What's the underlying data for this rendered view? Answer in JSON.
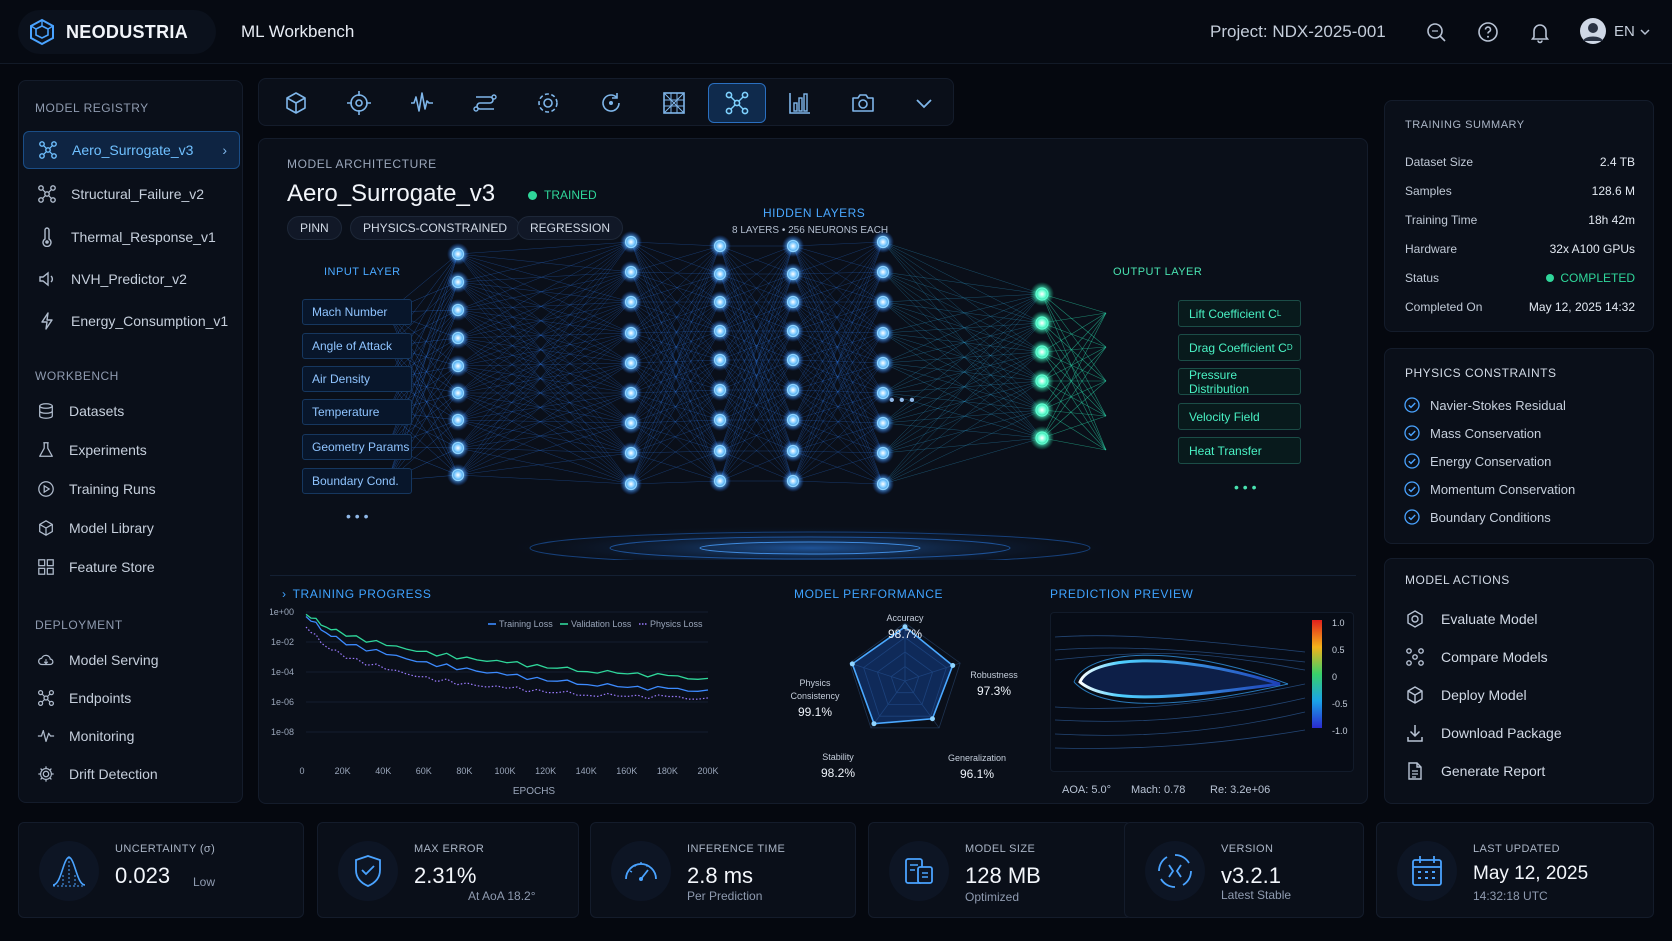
{
  "header": {
    "brand": "NEODUSTRIA",
    "app_title": "ML Workbench",
    "project": "Project: NDX-2025-001",
    "language": "EN"
  },
  "sidebar": {
    "registry_title": "MODEL REGISTRY",
    "models": [
      {
        "label": "Aero_Surrogate_v3",
        "icon": "network-icon",
        "active": true
      },
      {
        "label": "Structural_Failure_v2",
        "icon": "network-icon"
      },
      {
        "label": "Thermal_Response_v1",
        "icon": "thermometer-icon"
      },
      {
        "label": "NVH_Predictor_v2",
        "icon": "speaker-icon"
      },
      {
        "label": "Energy_Consumption_v1",
        "icon": "lightning-icon"
      }
    ],
    "workbench_title": "WORKBENCH",
    "workbench": [
      {
        "label": "Datasets",
        "icon": "database-icon"
      },
      {
        "label": "Experiments",
        "icon": "flask-icon"
      },
      {
        "label": "Training Runs",
        "icon": "play-icon"
      },
      {
        "label": "Model Library",
        "icon": "cube-icon"
      },
      {
        "label": "Feature Store",
        "icon": "grid-icon"
      }
    ],
    "deployment_title": "DEPLOYMENT",
    "deployment": [
      {
        "label": "Model Serving",
        "icon": "cloud-icon"
      },
      {
        "label": "Endpoints",
        "icon": "nodes-icon"
      },
      {
        "label": "Monitoring",
        "icon": "pulse-icon"
      },
      {
        "label": "Drift Detection",
        "icon": "gear-icon"
      }
    ]
  },
  "toolbar": {
    "tools": [
      "cube-icon",
      "target-icon",
      "waveform-icon",
      "pipeline-icon",
      "settings-icon",
      "refresh-icon",
      "mesh-icon",
      "network-icon",
      "bar-chart-icon",
      "camera-icon",
      "chevron-down-icon"
    ],
    "active_index": 7
  },
  "architecture": {
    "section_title": "MODEL ARCHITECTURE",
    "model_name": "Aero_Surrogate_v3",
    "status": "TRAINED",
    "tags": [
      "PINN",
      "PHYSICS-CONSTRAINED",
      "REGRESSION"
    ],
    "hidden_title": "HIDDEN LAYERS",
    "hidden_subtitle": "8 LAYERS • 256 NEURONS EACH",
    "input_title": "INPUT LAYER",
    "inputs": [
      "Mach Number",
      "Angle of Attack",
      "Air Density",
      "Temperature",
      "Geometry Params",
      "Boundary Cond."
    ],
    "output_title": "OUTPUT LAYER",
    "outputs": [
      {
        "label": "Lift Coefficient C",
        "sub": "L"
      },
      {
        "label": "Drag Coefficient C",
        "sub": "D"
      },
      {
        "label": "Pressure Distribution",
        "sub": ""
      },
      {
        "label": "Velocity Field",
        "sub": ""
      },
      {
        "label": "Heat Transfer",
        "sub": ""
      }
    ],
    "ellipsis": "• • •"
  },
  "training": {
    "title": "TRAINING PROGRESS",
    "legend": [
      "Training Loss",
      "Validation Loss",
      "Physics Loss"
    ],
    "xlabel": "EPOCHS"
  },
  "chart_data": {
    "type": "line",
    "title": "TRAINING PROGRESS",
    "xlabel": "EPOCHS",
    "ylabel": "",
    "y_scale": "log",
    "x_ticks": [
      "0",
      "20K",
      "40K",
      "60K",
      "80K",
      "100K",
      "120K",
      "140K",
      "160K",
      "180K",
      "200K"
    ],
    "y_ticks": [
      "1e+00",
      "1e-02",
      "1e-04",
      "1e-06",
      "1e-08"
    ],
    "xlim": [
      0,
      200000
    ],
    "ylim": [
      1e-08,
      1
    ],
    "x": [
      0,
      10000,
      20000,
      40000,
      60000,
      80000,
      100000,
      120000,
      140000,
      160000,
      180000,
      200000
    ],
    "series": [
      {
        "name": "Training Loss",
        "color": "#3d8bff",
        "style": "solid",
        "values": [
          0.5,
          0.05,
          0.008,
          0.0015,
          0.0004,
          0.00015,
          6e-05,
          3e-05,
          1.8e-05,
          1e-05,
          7e-06,
          5e-06
        ]
      },
      {
        "name": "Validation Loss",
        "color": "#2fd69a",
        "style": "solid",
        "values": [
          0.7,
          0.12,
          0.03,
          0.006,
          0.002,
          0.0008,
          0.0004,
          0.00022,
          0.00013,
          8e-05,
          5e-05,
          3e-05
        ]
      },
      {
        "name": "Physics Loss",
        "color": "#9b7bff",
        "style": "dotted",
        "values": [
          0.1,
          0.006,
          0.001,
          0.00015,
          4e-05,
          1.5e-05,
          8e-06,
          5e-06,
          3.5e-06,
          2.5e-06,
          2e-06,
          1.5e-06
        ]
      }
    ]
  },
  "performance": {
    "title": "MODEL PERFORMANCE",
    "metrics": [
      {
        "name": "Accuracy",
        "value": "98.7%",
        "score": 98.7
      },
      {
        "name": "Robustness",
        "value": "97.3%",
        "score": 97.3
      },
      {
        "name": "Generalization",
        "value": "96.1%",
        "score": 96.1
      },
      {
        "name": "Stability",
        "value": "98.2%",
        "score": 98.2
      },
      {
        "name": "Physics Consistency",
        "value": "99.1%",
        "score": 99.1
      }
    ]
  },
  "prediction": {
    "title": "PREDICTION PREVIEW",
    "scale_ticks": [
      "1.0",
      "0.5",
      "0",
      "-0.5",
      "-1.0"
    ],
    "aoa": "AOA: 5.0°",
    "mach": "Mach: 0.78",
    "re": "Re: 3.2e+06"
  },
  "summary": {
    "title": "TRAINING SUMMARY",
    "rows": [
      {
        "k": "Dataset Size",
        "v": "2.4 TB"
      },
      {
        "k": "Samples",
        "v": "128.6 M"
      },
      {
        "k": "Training Time",
        "v": "18h 42m"
      },
      {
        "k": "Hardware",
        "v": "32x A100 GPUs"
      },
      {
        "k": "Status",
        "v": "COMPLETED"
      },
      {
        "k": "Completed On",
        "v": "May 12, 2025 14:32"
      }
    ]
  },
  "constraints": {
    "title": "PHYSICS CONSTRAINTS",
    "items": [
      "Navier-Stokes Residual",
      "Mass Conservation",
      "Energy Conservation",
      "Momentum Conservation",
      "Boundary Conditions"
    ]
  },
  "actions": {
    "title": "MODEL ACTIONS",
    "items": [
      {
        "label": "Evaluate Model",
        "icon": "evaluate-icon"
      },
      {
        "label": "Compare Models",
        "icon": "compare-icon"
      },
      {
        "label": "Deploy Model",
        "icon": "deploy-icon"
      },
      {
        "label": "Download Package",
        "icon": "download-icon"
      },
      {
        "label": "Generate Report",
        "icon": "report-icon"
      }
    ]
  },
  "stats": [
    {
      "label": "UNCERTAINTY (σ)",
      "value": "0.023",
      "sub": "Low",
      "icon": "distribution-icon"
    },
    {
      "label": "MAX ERROR",
      "value": "2.31%",
      "sub": "At AoA 18.2°",
      "icon": "shield-icon"
    },
    {
      "label": "INFERENCE TIME",
      "value": "2.8 ms",
      "sub": "Per Prediction",
      "icon": "gauge-icon"
    },
    {
      "label": "MODEL SIZE",
      "value": "128 MB",
      "sub": "Optimized",
      "icon": "storage-icon"
    },
    {
      "label": "VERSION",
      "value": "v3.2.1",
      "sub": "Latest Stable",
      "icon": "version-icon"
    },
    {
      "label": "LAST UPDATED",
      "value": "May 12, 2025",
      "sub": "14:32:18 UTC",
      "icon": "calendar-icon"
    }
  ],
  "colors": {
    "accent": "#3fa3ff",
    "success": "#2fd69a",
    "output": "#49f2c4"
  }
}
